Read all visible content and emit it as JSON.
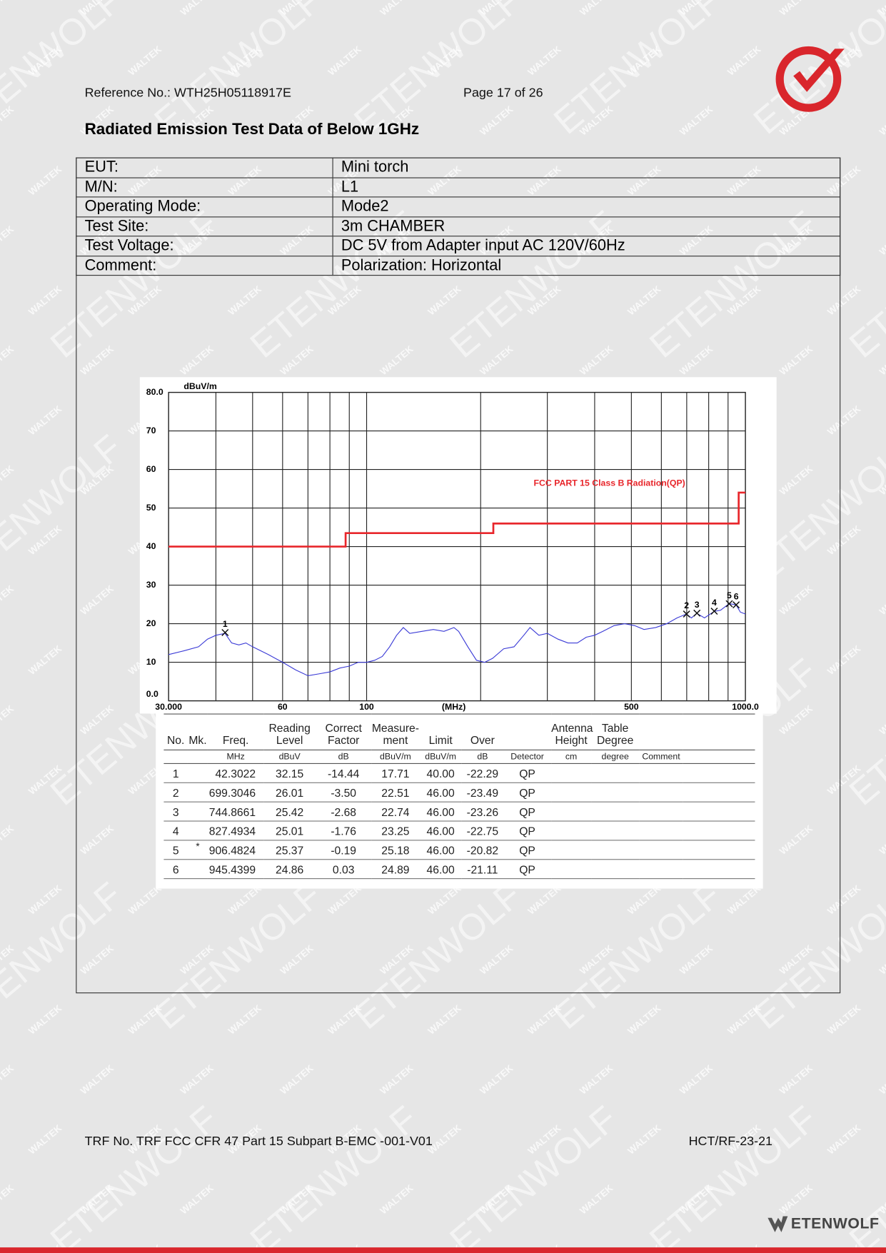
{
  "watermarks": [
    "WALTEK",
    "ETENWOLF"
  ],
  "header": {
    "reference": "Reference No.: WTH25H05118917E",
    "page": "Page 17 of 26"
  },
  "title": "Radiated Emission Test Data of Below 1GHz",
  "info_table": {
    "rows": [
      [
        "EUT:",
        "Mini torch"
      ],
      [
        "M/N:",
        "L1"
      ],
      [
        "Operating Mode:",
        "Mode2"
      ],
      [
        "Test Site:",
        "3m CHAMBER"
      ],
      [
        "Test Voltage:",
        "DC 5V from Adapter input AC 120V/60Hz"
      ],
      [
        "Comment:",
        "Polarization: Horizontal"
      ]
    ]
  },
  "chart_data": {
    "type": "line",
    "xscale": "log",
    "grid": true,
    "ylabel": "dBuV/m",
    "xlabel": "(MHz)",
    "xlim": [
      30,
      1000
    ],
    "ylim": [
      0,
      80
    ],
    "xticks": [
      {
        "value": 30,
        "label": "30.000"
      },
      60,
      100,
      500,
      {
        "value": 1000,
        "label": "1000.0"
      }
    ],
    "xgrid": [
      40,
      50,
      70,
      80,
      90,
      200,
      300,
      400,
      600,
      700,
      800,
      900
    ],
    "yticks": [
      {
        "value": 0,
        "label": "0.0"
      },
      10,
      20,
      30,
      40,
      50,
      60,
      70,
      {
        "value": 80,
        "label": "80.0"
      }
    ],
    "series": [
      {
        "name": "FCC PART 15 Class B Radiation(QP)",
        "color": "#e8262b",
        "x": [
          30,
          88,
          88,
          216,
          216,
          960,
          960,
          1000
        ],
        "values": [
          40,
          40,
          43.5,
          43.5,
          46,
          46,
          54,
          54
        ]
      },
      {
        "color": "#3a3ad6",
        "x": [
          30,
          33,
          36,
          38,
          40,
          42.3,
          44,
          46,
          48,
          50,
          55,
          60,
          65,
          70,
          75,
          80,
          85,
          90,
          95,
          100,
          105,
          110,
          115,
          120,
          125,
          130,
          140,
          150,
          160,
          170,
          175,
          185,
          195,
          205,
          215,
          230,
          245,
          260,
          270,
          285,
          300,
          320,
          340,
          360,
          380,
          400,
          420,
          450,
          480,
          510,
          540,
          580,
          620,
          660,
          699,
          720,
          744,
          780,
          827,
          860,
          906,
          945,
          970,
          1000
        ],
        "values": [
          12,
          13,
          14,
          16,
          17,
          17.5,
          15,
          14.5,
          15,
          14,
          12,
          10,
          8,
          6.5,
          7,
          7.5,
          8.5,
          9,
          10,
          10,
          10.5,
          11.5,
          14,
          17,
          19,
          17.5,
          18,
          18.5,
          18,
          19,
          18,
          14,
          10.5,
          10,
          11,
          13.5,
          14,
          17,
          19,
          17,
          17.5,
          16,
          15,
          15,
          16.5,
          17,
          18,
          19.5,
          20,
          19.5,
          18.5,
          19,
          20,
          21.5,
          22.5,
          21.5,
          22.7,
          21.5,
          23.2,
          23.5,
          25.2,
          24.9,
          23,
          22.5
        ]
      }
    ],
    "markers": {
      "labels": [
        "1",
        "2",
        "3",
        "4",
        "5",
        "6"
      ],
      "x": [
        42.3022,
        699.3046,
        744.8661,
        827.4934,
        906.4824,
        945.4399
      ],
      "y": [
        17.71,
        22.51,
        22.74,
        23.25,
        25.18,
        24.89
      ]
    }
  },
  "results_table": {
    "columns": [
      {
        "key": "no",
        "name": "No."
      },
      {
        "key": "mk",
        "name": "Mk."
      },
      {
        "key": "freq",
        "name": "Freq.",
        "unit": "MHz"
      },
      {
        "key": "reading",
        "name": "Reading Level",
        "unit": "dBuV"
      },
      {
        "key": "factor",
        "name": "Correct Factor",
        "unit": "dB"
      },
      {
        "key": "measurement",
        "name": "Measure-ment",
        "unit": "dBuV/m"
      },
      {
        "key": "limit",
        "name": "Limit",
        "unit": "dBuV/m"
      },
      {
        "key": "over",
        "name": "Over",
        "unit": "dB"
      },
      {
        "key": "detector",
        "unit": "Detector"
      },
      {
        "key": "height",
        "name": "Antenna Height",
        "unit": "cm"
      },
      {
        "key": "degree",
        "name": "Table Degree",
        "unit": "degree"
      },
      {
        "key": "comment",
        "unit": "Comment"
      }
    ],
    "rows": [
      {
        "no": "1",
        "freq": "42.3022",
        "reading": "32.15",
        "factor": "-14.44",
        "measurement": "17.71",
        "limit": "40.00",
        "over": "-22.29",
        "detector": "QP"
      },
      {
        "no": "2",
        "freq": "699.3046",
        "reading": "26.01",
        "factor": "-3.50",
        "measurement": "22.51",
        "limit": "46.00",
        "over": "-23.49",
        "detector": "QP"
      },
      {
        "no": "3",
        "freq": "744.8661",
        "reading": "25.42",
        "factor": "-2.68",
        "measurement": "22.74",
        "limit": "46.00",
        "over": "-23.26",
        "detector": "QP"
      },
      {
        "no": "4",
        "freq": "827.4934",
        "reading": "25.01",
        "factor": "-1.76",
        "measurement": "23.25",
        "limit": "46.00",
        "over": "-22.75",
        "detector": "QP"
      },
      {
        "no": "5",
        "mk": "*",
        "freq": "906.4824",
        "reading": "25.37",
        "factor": "-0.19",
        "measurement": "25.18",
        "limit": "46.00",
        "over": "-20.82",
        "detector": "QP"
      },
      {
        "no": "6",
        "freq": "945.4399",
        "reading": "24.86",
        "factor": "0.03",
        "measurement": "24.89",
        "limit": "46.00",
        "over": "-21.11",
        "detector": "QP"
      }
    ]
  },
  "footer": {
    "trf": "TRF No. TRF FCC CFR 47 Part 15 Subpart B-EMC -001-V01",
    "code": "HCT/RF-23-21",
    "brand": "ETENWOLF"
  }
}
